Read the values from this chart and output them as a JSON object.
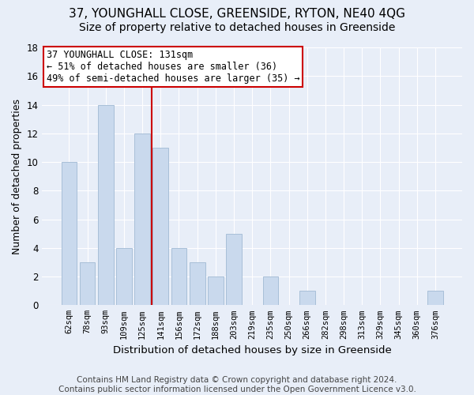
{
  "title": "37, YOUNGHALL CLOSE, GREENSIDE, RYTON, NE40 4QG",
  "subtitle": "Size of property relative to detached houses in Greenside",
  "xlabel": "Distribution of detached houses by size in Greenside",
  "ylabel": "Number of detached properties",
  "categories": [
    "62sqm",
    "78sqm",
    "93sqm",
    "109sqm",
    "125sqm",
    "141sqm",
    "156sqm",
    "172sqm",
    "188sqm",
    "203sqm",
    "219sqm",
    "235sqm",
    "250sqm",
    "266sqm",
    "282sqm",
    "298sqm",
    "313sqm",
    "329sqm",
    "345sqm",
    "360sqm",
    "376sqm"
  ],
  "values": [
    10,
    3,
    14,
    4,
    12,
    11,
    4,
    3,
    2,
    5,
    0,
    2,
    0,
    1,
    0,
    0,
    0,
    0,
    0,
    0,
    1
  ],
  "bar_color": "#c9d9ed",
  "bar_edge_color": "#a8bfd8",
  "vline_x": 4.5,
  "annotation_text": "37 YOUNGHALL CLOSE: 131sqm\n← 51% of detached houses are smaller (36)\n49% of semi-detached houses are larger (35) →",
  "annotation_box_color": "#ffffff",
  "annotation_box_edge_color": "#cc0000",
  "ylim": [
    0,
    18
  ],
  "yticks": [
    0,
    2,
    4,
    6,
    8,
    10,
    12,
    14,
    16,
    18
  ],
  "footer": "Contains HM Land Registry data © Crown copyright and database right 2024.\nContains public sector information licensed under the Open Government Licence v3.0.",
  "background_color": "#e8eef8",
  "grid_color": "#ffffff",
  "title_fontsize": 11,
  "subtitle_fontsize": 10,
  "xlabel_fontsize": 9.5,
  "ylabel_fontsize": 9,
  "annotation_fontsize": 8.5,
  "footer_fontsize": 7.5
}
